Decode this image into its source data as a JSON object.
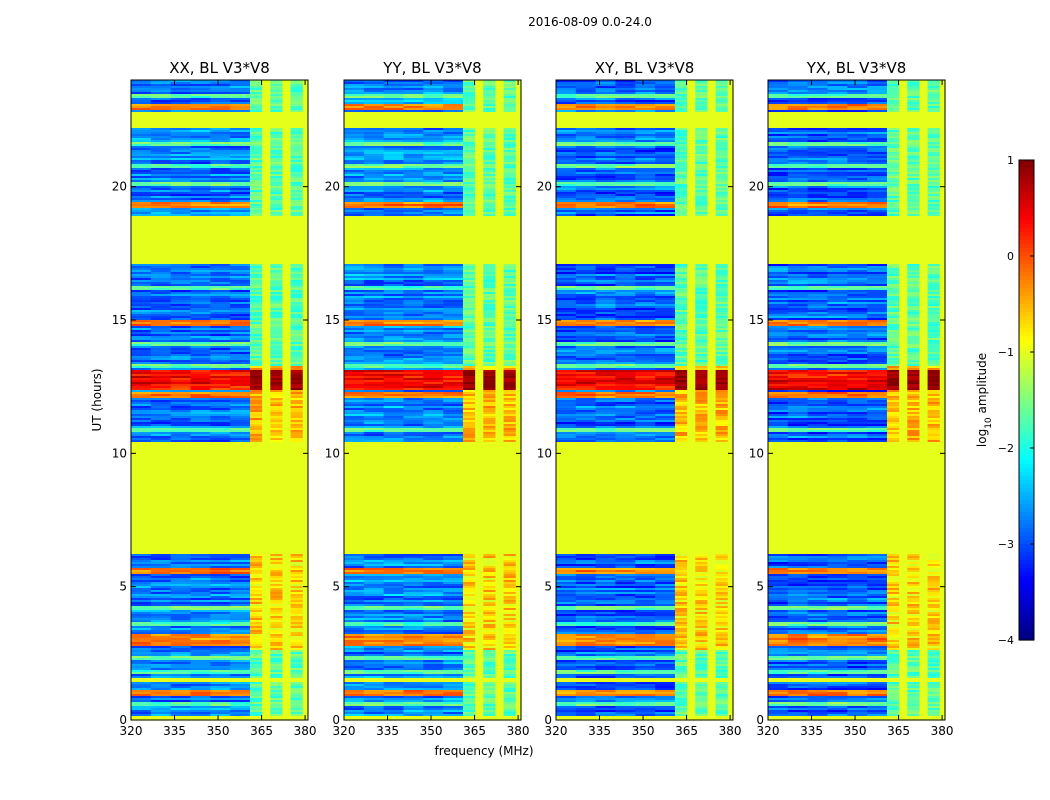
{
  "chart_data": {
    "type": "heatmap",
    "title": "2016-08-09 0.0-24.0",
    "xlabel": "frequency (MHz)",
    "ylabel": "UT (hours)",
    "xlim": [
      320,
      381
    ],
    "ylim": [
      0,
      24
    ],
    "x_ticks": [
      320,
      335,
      350,
      365,
      380
    ],
    "y_ticks": [
      0,
      5,
      10,
      15,
      20
    ],
    "colormap": "jet",
    "colorbar": {
      "label_prefix": "log",
      "label_subscript": "10",
      "label_suffix": " amplitude",
      "range": [
        -4,
        1
      ],
      "ticks": [
        1,
        0,
        -1,
        -2,
        -3,
        -4
      ],
      "tick_labels": [
        "1",
        "0",
        "−1",
        "−2",
        "−3",
        "−4"
      ]
    },
    "flagged_value": -1,
    "flagged_time_ranges": [
      [
        22.2,
        22.8
      ],
      [
        17.1,
        18.9
      ],
      [
        6.2,
        10.4
      ],
      [
        1.4,
        1.6
      ],
      [
        0.0,
        0.15
      ]
    ],
    "rfi_band_mhz": [
      361,
      380
    ],
    "strong_event_hours": [
      12.4,
      13.1
    ],
    "panels": [
      {
        "name": "xx",
        "title": "XX, BL V3*V8",
        "baseline_level": -2.8
      },
      {
        "name": "yy",
        "title": "YY, BL V3*V8",
        "baseline_level": -2.7
      },
      {
        "name": "xy",
        "title": "XY, BL V3*V8",
        "baseline_level": -2.9
      },
      {
        "name": "yx",
        "title": "YX, BL V3*V8",
        "baseline_level": -2.9
      }
    ]
  }
}
